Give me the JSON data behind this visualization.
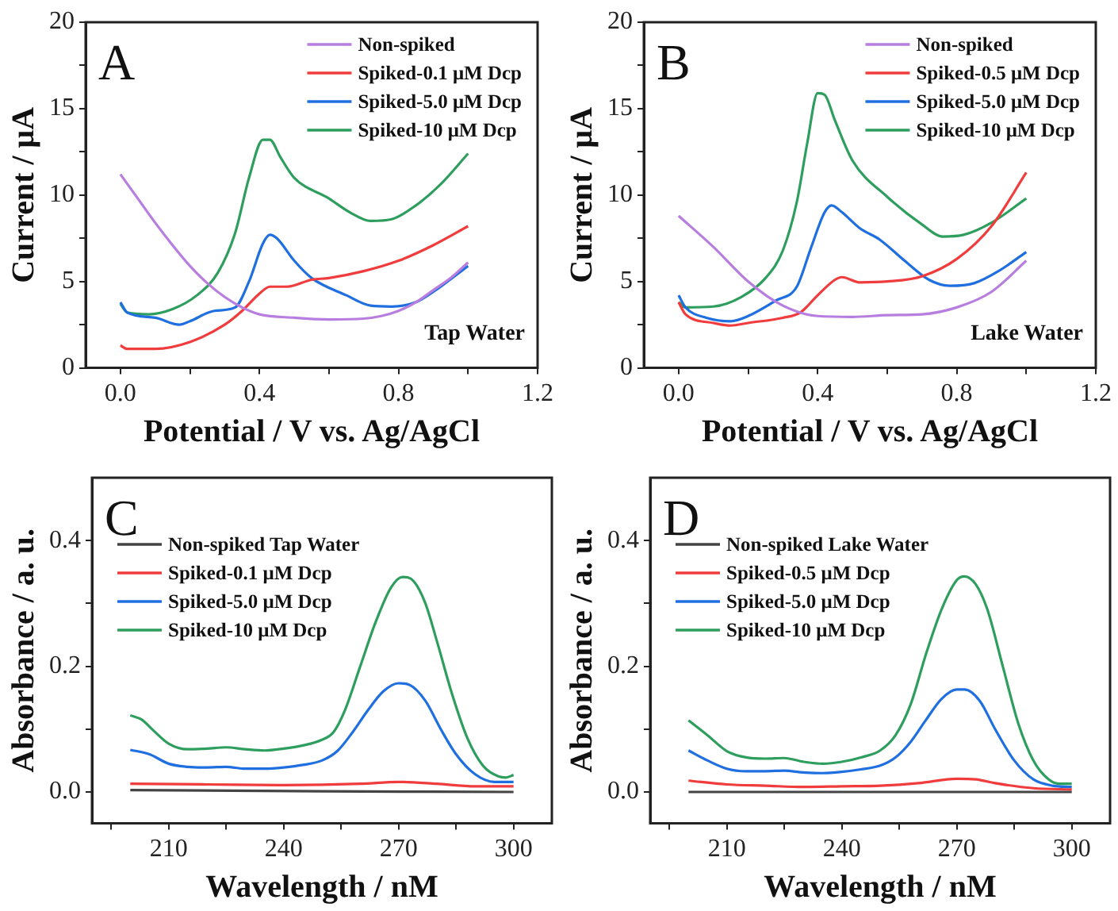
{
  "chart_data": [
    {
      "type": "line",
      "xlabel": "Potential / V vs. Ag/AgCl",
      "ylabel": "Current / μA",
      "annotations": [
        "A",
        "Tap Water"
      ],
      "legend": "top right",
      "grid": false,
      "xlim": [
        -0.1,
        1.2
      ],
      "ylim": [
        0,
        20
      ],
      "xticks": [
        {
          "value": 0,
          "label": "0.0"
        },
        {
          "value": 0.2,
          "label": null
        },
        {
          "value": 0.4,
          "label": "0.4"
        },
        {
          "value": 0.6,
          "label": null
        },
        {
          "value": 0.8,
          "label": "0.8"
        },
        {
          "value": 1.0,
          "label": null
        },
        {
          "value": 1.2,
          "label": "1.2"
        }
      ],
      "yticks": [
        0,
        {
          "value": 2.5,
          "label": null
        },
        5,
        {
          "value": 7.5,
          "label": null
        },
        10,
        {
          "value": 12.5,
          "label": null
        },
        15,
        {
          "value": 17.5,
          "label": null
        },
        20
      ],
      "series": [
        {
          "name": "Non-spiked",
          "color": "#b77ee0",
          "x": [
            0.0,
            0.05,
            0.1,
            0.15,
            0.2,
            0.25,
            0.3,
            0.35,
            0.4,
            0.5,
            0.6,
            0.7,
            0.75,
            0.8,
            0.85,
            0.9,
            0.95,
            1.0
          ],
          "values": [
            11.2,
            9.8,
            8.4,
            7.1,
            5.9,
            4.9,
            4.1,
            3.5,
            3.1,
            2.9,
            2.8,
            2.85,
            3.0,
            3.3,
            3.8,
            4.5,
            5.2,
            6.1
          ]
        },
        {
          "name": "Spiked-0.1 μM Dcp",
          "color": "#f03c3c",
          "x": [
            0.0,
            0.02,
            0.1,
            0.2,
            0.3,
            0.35,
            0.4,
            0.43,
            0.48,
            0.55,
            0.6,
            0.7,
            0.8,
            0.9,
            1.0
          ],
          "values": [
            1.3,
            1.1,
            1.1,
            1.5,
            2.5,
            3.3,
            4.3,
            4.7,
            4.7,
            5.1,
            5.2,
            5.6,
            6.2,
            7.1,
            8.2
          ]
        },
        {
          "name": "Spiked-5.0 μM Dcp",
          "color": "#1f6fe0",
          "x": [
            0.0,
            0.02,
            0.1,
            0.17,
            0.2,
            0.27,
            0.33,
            0.37,
            0.41,
            0.43,
            0.45,
            0.5,
            0.55,
            0.65,
            0.72,
            0.78,
            0.85,
            0.9,
            1.0
          ],
          "values": [
            3.8,
            3.2,
            2.9,
            2.5,
            2.7,
            3.3,
            3.5,
            5.0,
            7.2,
            7.7,
            7.5,
            6.2,
            5.2,
            4.2,
            3.6,
            3.55,
            3.8,
            4.4,
            5.9
          ]
        },
        {
          "name": "Spiked-10 μM Dcp",
          "color": "#2e9e5e",
          "x": [
            0.0,
            0.02,
            0.08,
            0.15,
            0.22,
            0.28,
            0.33,
            0.37,
            0.41,
            0.43,
            0.46,
            0.5,
            0.6,
            0.66,
            0.72,
            0.78,
            0.85,
            0.92,
            1.0
          ],
          "values": [
            3.7,
            3.2,
            3.1,
            3.4,
            4.2,
            5.5,
            7.8,
            11.0,
            13.2,
            13.2,
            12.2,
            11.0,
            9.8,
            9.0,
            8.5,
            8.6,
            9.4,
            10.6,
            12.4
          ]
        }
      ]
    },
    {
      "type": "line",
      "xlabel": "Potential / V vs. Ag/AgCl",
      "ylabel": "Current / μA",
      "annotations": [
        "B",
        "Lake Water"
      ],
      "legend": "top right",
      "grid": false,
      "xlim": [
        -0.1,
        1.2
      ],
      "ylim": [
        0,
        20
      ],
      "xticks": [
        {
          "value": 0,
          "label": "0.0"
        },
        {
          "value": 0.2,
          "label": null
        },
        {
          "value": 0.4,
          "label": "0.4"
        },
        {
          "value": 0.6,
          "label": null
        },
        {
          "value": 0.8,
          "label": "0.8"
        },
        {
          "value": 1.0,
          "label": null
        },
        {
          "value": 1.2,
          "label": "1.2"
        }
      ],
      "yticks": [
        0,
        {
          "value": 2.5,
          "label": null
        },
        5,
        {
          "value": 7.5,
          "label": null
        },
        10,
        {
          "value": 12.5,
          "label": null
        },
        15,
        {
          "value": 17.5,
          "label": null
        },
        20
      ],
      "series": [
        {
          "name": "Non-spiked",
          "color": "#b77ee0",
          "x": [
            0.0,
            0.1,
            0.2,
            0.3,
            0.4,
            0.5,
            0.6,
            0.7,
            0.8,
            0.9,
            1.0
          ],
          "values": [
            8.8,
            7.0,
            5.0,
            3.6,
            3.0,
            2.95,
            3.05,
            3.1,
            3.5,
            4.4,
            6.2
          ]
        },
        {
          "name": "Spiked-0.5 μM Dcp",
          "color": "#f03c3c",
          "x": [
            0.0,
            0.02,
            0.1,
            0.15,
            0.2,
            0.3,
            0.35,
            0.4,
            0.45,
            0.47,
            0.52,
            0.6,
            0.7,
            0.8,
            0.9,
            1.0
          ],
          "values": [
            3.8,
            3.1,
            2.6,
            2.45,
            2.6,
            2.9,
            3.2,
            4.2,
            5.1,
            5.25,
            4.95,
            5.0,
            5.3,
            6.3,
            8.2,
            11.3
          ]
        },
        {
          "name": "Spiked-5.0 μM Dcp",
          "color": "#1f6fe0",
          "x": [
            0.0,
            0.02,
            0.08,
            0.15,
            0.2,
            0.28,
            0.34,
            0.38,
            0.42,
            0.44,
            0.47,
            0.52,
            0.58,
            0.65,
            0.72,
            0.78,
            0.85,
            0.92,
            1.0
          ],
          "values": [
            4.2,
            3.5,
            2.9,
            2.7,
            3.0,
            3.9,
            4.7,
            6.9,
            9.0,
            9.4,
            9.0,
            8.1,
            7.4,
            6.2,
            5.1,
            4.75,
            4.9,
            5.6,
            6.7
          ]
        },
        {
          "name": "Spiked-10 μM Dcp",
          "color": "#2e9e5e",
          "x": [
            0.0,
            0.02,
            0.1,
            0.18,
            0.25,
            0.3,
            0.34,
            0.37,
            0.4,
            0.42,
            0.45,
            0.5,
            0.6,
            0.7,
            0.76,
            0.82,
            0.9,
            1.0
          ],
          "values": [
            3.8,
            3.5,
            3.55,
            4.1,
            5.2,
            6.8,
            9.6,
            13.0,
            15.9,
            15.8,
            14.3,
            12.0,
            9.9,
            8.3,
            7.6,
            7.7,
            8.4,
            9.8
          ]
        }
      ]
    },
    {
      "type": "line",
      "xlabel": "Wavelength / nM",
      "ylabel": "Absorbance / a. u.",
      "annotations": [
        "C"
      ],
      "legend": "top left",
      "grid": false,
      "xlim": [
        190,
        310
      ],
      "ylim": [
        -0.05,
        0.5
      ],
      "xticks": [
        {
          "value": 195,
          "label": null
        },
        210,
        {
          "value": 225,
          "label": null
        },
        240,
        {
          "value": 255,
          "label": null
        },
        270,
        {
          "value": 285,
          "label": null
        },
        300
      ],
      "yticks": [
        {
          "value": 0,
          "label": "0.0"
        },
        {
          "value": 0.1,
          "label": null
        },
        {
          "value": 0.2,
          "label": "0.2"
        },
        {
          "value": 0.3,
          "label": null
        },
        {
          "value": 0.4,
          "label": "0.4"
        }
      ],
      "series": [
        {
          "name": "Non-spiked Tap Water",
          "color": "#444444",
          "x": [
            200,
            250,
            300
          ],
          "values": [
            0.003,
            0.001,
            0.0
          ]
        },
        {
          "name": "Spiked-0.1 μM Dcp",
          "color": "#f03c3c",
          "x": [
            200,
            220,
            240,
            260,
            270,
            280,
            290,
            300
          ],
          "values": [
            0.013,
            0.012,
            0.011,
            0.013,
            0.016,
            0.013,
            0.009,
            0.009
          ]
        },
        {
          "name": "Spiked-5.0 μM Dcp",
          "color": "#1f6fe0",
          "x": [
            200,
            205,
            210,
            215,
            220,
            225,
            230,
            235,
            240,
            245,
            250,
            254,
            258,
            262,
            266,
            270,
            273,
            277,
            281,
            285,
            290,
            295,
            300
          ],
          "values": [
            0.067,
            0.06,
            0.045,
            0.04,
            0.039,
            0.04,
            0.037,
            0.037,
            0.039,
            0.043,
            0.05,
            0.065,
            0.095,
            0.13,
            0.16,
            0.173,
            0.17,
            0.145,
            0.1,
            0.06,
            0.028,
            0.016,
            0.016
          ]
        },
        {
          "name": "Spiked-10 μM Dcp",
          "color": "#2e9e5e",
          "x": [
            200,
            203,
            206,
            210,
            215,
            220,
            225,
            230,
            235,
            240,
            245,
            250,
            253,
            256,
            260,
            264,
            268,
            271,
            274,
            277,
            280,
            284,
            288,
            292,
            296,
            298,
            300
          ],
          "values": [
            0.122,
            0.115,
            0.098,
            0.077,
            0.068,
            0.069,
            0.071,
            0.068,
            0.066,
            0.069,
            0.074,
            0.083,
            0.095,
            0.13,
            0.2,
            0.27,
            0.325,
            0.342,
            0.335,
            0.3,
            0.24,
            0.155,
            0.085,
            0.042,
            0.025,
            0.023,
            0.027
          ]
        }
      ]
    },
    {
      "type": "line",
      "xlabel": "Wavelength / nM",
      "ylabel": "Absorbance / a. u.",
      "annotations": [
        "D"
      ],
      "legend": "top left",
      "grid": false,
      "xlim": [
        190,
        310
      ],
      "ylim": [
        -0.05,
        0.5
      ],
      "xticks": [
        {
          "value": 195,
          "label": null
        },
        210,
        {
          "value": 225,
          "label": null
        },
        240,
        {
          "value": 255,
          "label": null
        },
        270,
        {
          "value": 285,
          "label": null
        },
        300
      ],
      "yticks": [
        {
          "value": 0,
          "label": "0.0"
        },
        {
          "value": 0.1,
          "label": null
        },
        {
          "value": 0.2,
          "label": "0.2"
        },
        {
          "value": 0.3,
          "label": null
        },
        {
          "value": 0.4,
          "label": "0.4"
        }
      ],
      "series": [
        {
          "name": "Non-spiked Lake Water",
          "color": "#444444",
          "x": [
            200,
            250,
            300
          ],
          "values": [
            0.0,
            0.0,
            0.0
          ]
        },
        {
          "name": "Spiked-0.5 μM Dcp",
          "color": "#f03c3c",
          "x": [
            200,
            210,
            220,
            230,
            240,
            250,
            260,
            270,
            275,
            280,
            290,
            300
          ],
          "values": [
            0.018,
            0.012,
            0.01,
            0.008,
            0.009,
            0.01,
            0.014,
            0.021,
            0.02,
            0.014,
            0.006,
            0.004
          ]
        },
        {
          "name": "Spiked-5.0 μM Dcp",
          "color": "#1f6fe0",
          "x": [
            200,
            205,
            210,
            215,
            220,
            225,
            230,
            235,
            240,
            245,
            250,
            254,
            258,
            262,
            266,
            270,
            272,
            276,
            280,
            285,
            290,
            295,
            300
          ],
          "values": [
            0.066,
            0.05,
            0.037,
            0.033,
            0.033,
            0.034,
            0.031,
            0.03,
            0.032,
            0.036,
            0.042,
            0.055,
            0.08,
            0.115,
            0.148,
            0.163,
            0.163,
            0.145,
            0.1,
            0.05,
            0.02,
            0.01,
            0.008
          ]
        },
        {
          "name": "Spiked-10 μM Dcp",
          "color": "#2e9e5e",
          "x": [
            200,
            205,
            210,
            215,
            220,
            225,
            230,
            235,
            240,
            245,
            250,
            254,
            258,
            262,
            266,
            270,
            272,
            275,
            278,
            282,
            286,
            290,
            294,
            297,
            300
          ],
          "values": [
            0.114,
            0.09,
            0.065,
            0.055,
            0.053,
            0.054,
            0.048,
            0.045,
            0.048,
            0.055,
            0.066,
            0.09,
            0.14,
            0.22,
            0.29,
            0.337,
            0.343,
            0.33,
            0.29,
            0.2,
            0.11,
            0.05,
            0.02,
            0.013,
            0.013
          ]
        }
      ]
    }
  ]
}
